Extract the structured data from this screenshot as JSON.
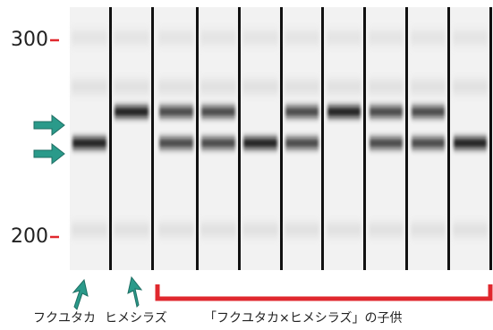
{
  "size_markers": [
    "300",
    "200"
  ],
  "lane_labels": {
    "parent1": "フクユタカ",
    "parent2": "ヒメシラズ",
    "offspring": "「フクユタカ×ヒメシラズ」の子供"
  }
}
